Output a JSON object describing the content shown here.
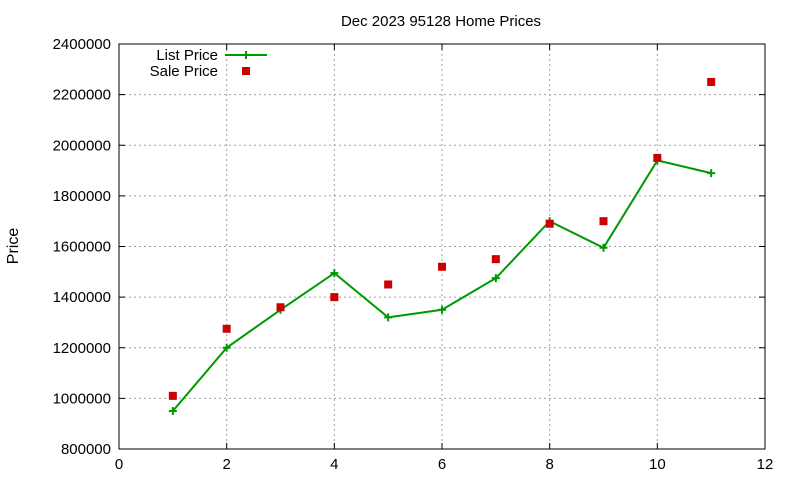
{
  "chart_data": {
    "type": "line",
    "title": "Dec 2023 95128 Home Prices",
    "xlabel": "",
    "ylabel": "Price",
    "xlim": [
      0,
      12
    ],
    "ylim": [
      800000,
      2400000
    ],
    "x_ticks": [
      0,
      2,
      4,
      6,
      8,
      10,
      12
    ],
    "y_ticks": [
      800000,
      1000000,
      1200000,
      1400000,
      1600000,
      1800000,
      2000000,
      2200000,
      2400000
    ],
    "grid": true,
    "legend_position": "top-left",
    "series": [
      {
        "name": "List Price",
        "type": "line",
        "marker": "plus",
        "color": "#009900",
        "x": [
          1,
          2,
          3,
          4,
          5,
          6,
          7,
          8,
          9,
          10,
          11
        ],
        "y": [
          950000,
          1200000,
          1350000,
          1495000,
          1320000,
          1350000,
          1475000,
          1700000,
          1595000,
          1940000,
          1890000
        ]
      },
      {
        "name": "Sale Price",
        "type": "scatter",
        "marker": "square",
        "color": "#cc0000",
        "x": [
          1,
          2,
          3,
          4,
          5,
          6,
          7,
          8,
          9,
          10,
          11
        ],
        "y": [
          1010000,
          1275000,
          1360000,
          1400000,
          1450000,
          1520000,
          1550000,
          1690000,
          1700000,
          1950000,
          2250000
        ]
      }
    ]
  }
}
